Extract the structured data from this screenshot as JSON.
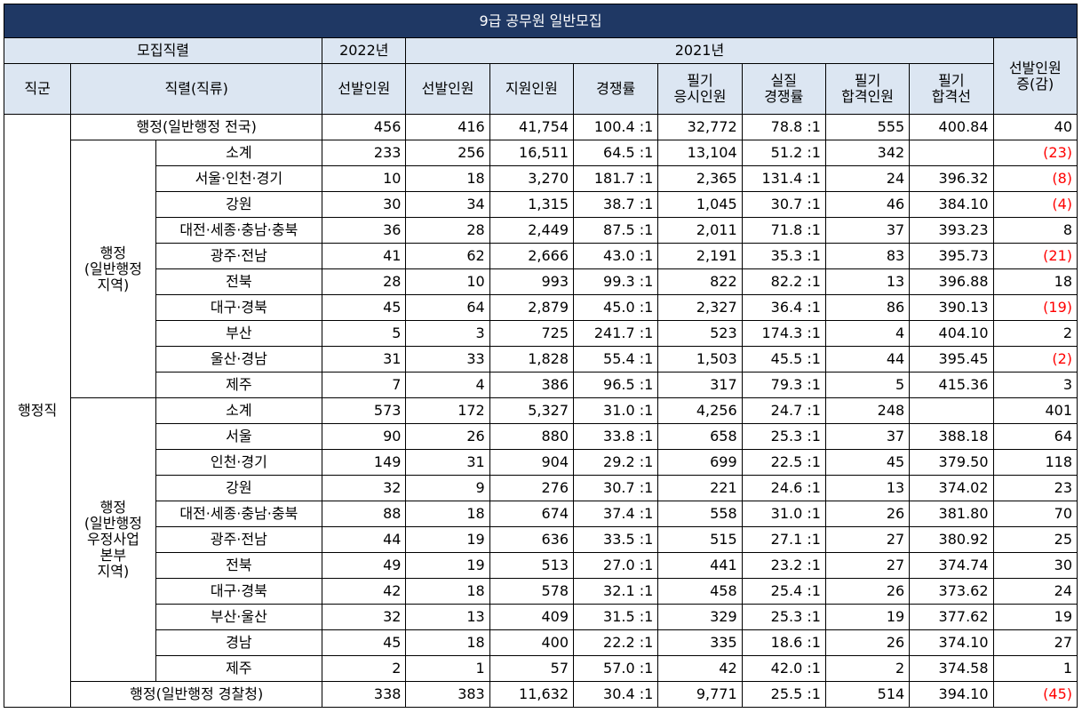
{
  "title": "9급 공무원 일반모집",
  "headers": {
    "mojip": "모집직렬",
    "y2022": "2022년",
    "y2021": "2021년",
    "increase": "선발인원 증(감)",
    "jikgun": "직군",
    "jikryeol": "직렬(직류)",
    "sel2022": "선발인원",
    "sel2021": "선발인원",
    "applicants": "지원인원",
    "ratio": "경쟁률",
    "written_takers_1": "필기",
    "written_takers_2": "응시인원",
    "real_ratio_1": "실질",
    "real_ratio_2": "경쟁률",
    "pass_count_1": "필기",
    "pass_count_2": "합격인원",
    "cutoff_1": "필기",
    "cutoff_2": "합격선",
    "increase_1": "선발인원",
    "increase_2": "증(감)"
  },
  "group_labels": {
    "jikgun": "행정직",
    "local_1": "행정",
    "local_2": "(일반행정",
    "local_3": "지역)",
    "post_1": "행정",
    "post_2": "(일반행정",
    "post_3": "우정사업",
    "post_4": "본부",
    "post_5": "지역)"
  },
  "rows": {
    "national": {
      "name": "행정(일반행정 전국)",
      "sel2022": "456",
      "sel2021": "416",
      "app": "41,754",
      "ratio": "100.4 :1",
      "takers": "32,772",
      "real": "78.8 :1",
      "pass": "555",
      "cut": "400.84",
      "inc": "40",
      "neg": false
    },
    "local": [
      {
        "name": "소계",
        "sel2022": "233",
        "sel2021": "256",
        "app": "16,511",
        "ratio": "64.5 :1",
        "takers": "13,104",
        "real": "51.2 :1",
        "pass": "342",
        "cut": "",
        "inc": "(23)",
        "neg": true
      },
      {
        "name": "서울·인천·경기",
        "sel2022": "10",
        "sel2021": "18",
        "app": "3,270",
        "ratio": "181.7 :1",
        "takers": "2,365",
        "real": "131.4 :1",
        "pass": "24",
        "cut": "396.32",
        "inc": "(8)",
        "neg": true
      },
      {
        "name": "강원",
        "sel2022": "30",
        "sel2021": "34",
        "app": "1,315",
        "ratio": "38.7 :1",
        "takers": "1,045",
        "real": "30.7 :1",
        "pass": "46",
        "cut": "384.10",
        "inc": "(4)",
        "neg": true
      },
      {
        "name": "대전·세종·충남·충북",
        "sel2022": "36",
        "sel2021": "28",
        "app": "2,449",
        "ratio": "87.5 :1",
        "takers": "2,011",
        "real": "71.8 :1",
        "pass": "37",
        "cut": "393.23",
        "inc": "8",
        "neg": false
      },
      {
        "name": "광주·전남",
        "sel2022": "41",
        "sel2021": "62",
        "app": "2,666",
        "ratio": "43.0 :1",
        "takers": "2,191",
        "real": "35.3 :1",
        "pass": "83",
        "cut": "395.73",
        "inc": "(21)",
        "neg": true
      },
      {
        "name": "전북",
        "sel2022": "28",
        "sel2021": "10",
        "app": "993",
        "ratio": "99.3 :1",
        "takers": "822",
        "real": "82.2 :1",
        "pass": "13",
        "cut": "396.88",
        "inc": "18",
        "neg": false
      },
      {
        "name": "대구·경북",
        "sel2022": "45",
        "sel2021": "64",
        "app": "2,879",
        "ratio": "45.0 :1",
        "takers": "2,327",
        "real": "36.4 :1",
        "pass": "86",
        "cut": "390.13",
        "inc": "(19)",
        "neg": true
      },
      {
        "name": "부산",
        "sel2022": "5",
        "sel2021": "3",
        "app": "725",
        "ratio": "241.7 :1",
        "takers": "523",
        "real": "174.3 :1",
        "pass": "4",
        "cut": "404.10",
        "inc": "2",
        "neg": false
      },
      {
        "name": "울산·경남",
        "sel2022": "31",
        "sel2021": "33",
        "app": "1,828",
        "ratio": "55.4 :1",
        "takers": "1,503",
        "real": "45.5 :1",
        "pass": "44",
        "cut": "395.45",
        "inc": "(2)",
        "neg": true
      },
      {
        "name": "제주",
        "sel2022": "7",
        "sel2021": "4",
        "app": "386",
        "ratio": "96.5 :1",
        "takers": "317",
        "real": "79.3 :1",
        "pass": "5",
        "cut": "415.36",
        "inc": "3",
        "neg": false
      }
    ],
    "post": [
      {
        "name": "소계",
        "sel2022": "573",
        "sel2021": "172",
        "app": "5,327",
        "ratio": "31.0 :1",
        "takers": "4,256",
        "real": "24.7 :1",
        "pass": "248",
        "cut": "",
        "inc": "401",
        "neg": false
      },
      {
        "name": "서울",
        "sel2022": "90",
        "sel2021": "26",
        "app": "880",
        "ratio": "33.8 :1",
        "takers": "658",
        "real": "25.3 :1",
        "pass": "37",
        "cut": "388.18",
        "inc": "64",
        "neg": false
      },
      {
        "name": "인천·경기",
        "sel2022": "149",
        "sel2021": "31",
        "app": "904",
        "ratio": "29.2 :1",
        "takers": "699",
        "real": "22.5 :1",
        "pass": "45",
        "cut": "379.50",
        "inc": "118",
        "neg": false
      },
      {
        "name": "강원",
        "sel2022": "32",
        "sel2021": "9",
        "app": "276",
        "ratio": "30.7 :1",
        "takers": "221",
        "real": "24.6 :1",
        "pass": "13",
        "cut": "374.02",
        "inc": "23",
        "neg": false
      },
      {
        "name": "대전·세종·충남·충북",
        "sel2022": "88",
        "sel2021": "18",
        "app": "674",
        "ratio": "37.4 :1",
        "takers": "558",
        "real": "31.0 :1",
        "pass": "26",
        "cut": "381.80",
        "inc": "70",
        "neg": false
      },
      {
        "name": "광주·전남",
        "sel2022": "44",
        "sel2021": "19",
        "app": "636",
        "ratio": "33.5 :1",
        "takers": "515",
        "real": "27.1 :1",
        "pass": "27",
        "cut": "380.92",
        "inc": "25",
        "neg": false
      },
      {
        "name": "전북",
        "sel2022": "49",
        "sel2021": "19",
        "app": "513",
        "ratio": "27.0 :1",
        "takers": "441",
        "real": "23.2 :1",
        "pass": "27",
        "cut": "374.74",
        "inc": "30",
        "neg": false
      },
      {
        "name": "대구·경북",
        "sel2022": "42",
        "sel2021": "18",
        "app": "578",
        "ratio": "32.1 :1",
        "takers": "458",
        "real": "25.4 :1",
        "pass": "26",
        "cut": "373.62",
        "inc": "24",
        "neg": false
      },
      {
        "name": "부산·울산",
        "sel2022": "32",
        "sel2021": "13",
        "app": "409",
        "ratio": "31.5 :1",
        "takers": "329",
        "real": "25.3 :1",
        "pass": "19",
        "cut": "377.62",
        "inc": "19",
        "neg": false
      },
      {
        "name": "경남",
        "sel2022": "45",
        "sel2021": "18",
        "app": "400",
        "ratio": "22.2 :1",
        "takers": "335",
        "real": "18.6 :1",
        "pass": "26",
        "cut": "374.10",
        "inc": "27",
        "neg": false
      },
      {
        "name": "제주",
        "sel2022": "2",
        "sel2021": "1",
        "app": "57",
        "ratio": "57.0 :1",
        "takers": "42",
        "real": "42.0 :1",
        "pass": "2",
        "cut": "374.58",
        "inc": "1",
        "neg": false
      }
    ],
    "police": {
      "name": "행정(일반행정 경찰청)",
      "sel2022": "338",
      "sel2021": "383",
      "app": "11,632",
      "ratio": "30.4 :1",
      "takers": "9,771",
      "real": "25.5 :1",
      "pass": "514",
      "cut": "394.10",
      "inc": "(45)",
      "neg": true
    }
  },
  "colors": {
    "title_bg": "#1f3864",
    "header_bg": "#dce6f2",
    "negative": "#ff0000"
  }
}
